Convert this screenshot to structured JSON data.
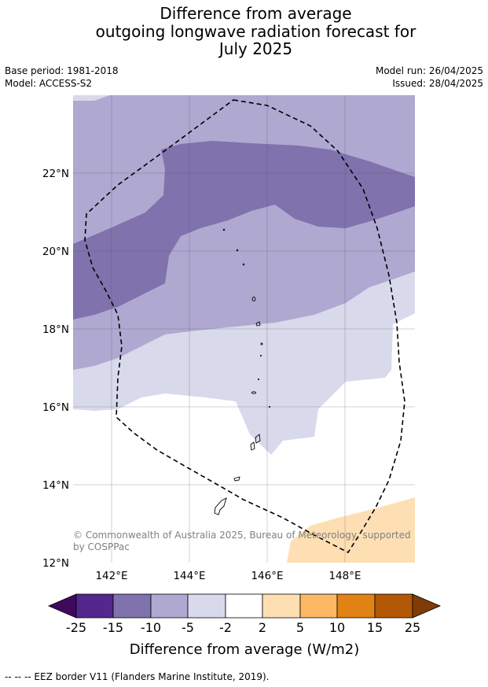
{
  "title_lines": [
    "Difference from average",
    "outgoing longwave radiation forecast for",
    "July 2025"
  ],
  "base_period": "Base period: 1981-2018",
  "model": "Model: ACCESS-S2",
  "model_run": "Model run: 26/04/2025",
  "issued": "Issued: 28/04/2025",
  "lat_labels": [
    "22°N",
    "20°N",
    "18°N",
    "16°N",
    "14°N",
    "12°N"
  ],
  "lon_labels": [
    "142°E",
    "144°E",
    "146°E",
    "148°E"
  ],
  "credit_lines": [
    "© Commonwealth of Australia 2025, Bureau of Meteorology, supported",
    "by COSPPac"
  ],
  "colorbar": {
    "title": "Difference from average (W/m2)",
    "ticks": [
      "-25",
      "-15",
      "-10",
      "-5",
      "-2",
      "2",
      "5",
      "10",
      "15",
      "25"
    ],
    "colors": {
      "below_-25": "#3f0a5e",
      "-25_-15": "#54278f",
      "-15_-10": "#7f72ad",
      "-10_-5": "#afa8d0",
      "-5_-2": "#d8d9eb",
      "-2_2": "#ffffff",
      "2_5": "#fedfb4",
      "5_10": "#fdb863",
      "10_15": "#e08214",
      "15_25": "#b35806",
      "above_25": "#7f3b08"
    }
  },
  "eez_note": "--  --  -- EEZ border V11 (Flanders Marine Institute, 2019)."
}
